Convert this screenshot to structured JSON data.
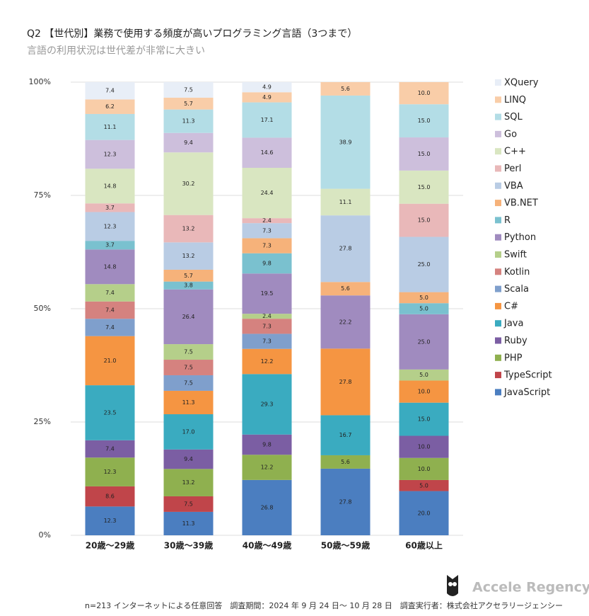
{
  "chart_data": {
    "type": "stacked_bar_100",
    "title": "Q2 【世代別】業務で使用する頻度が高いプログラミング言語（3つまで）",
    "subtitle": "言語の利用状況は世代差が非常に大きい",
    "footnote": "n=213 インターネットによる任意回答　調査期間：2024 年 9 月 24 日〜 10 月 28 日　調査実行者：株式会社アクセラリージェンシー",
    "brand": "Accele Regency",
    "categories": [
      "20歳〜29歳",
      "30歳〜39歳",
      "40歳〜49歳",
      "50歳〜59歳",
      "60歳以上"
    ],
    "ylim": [
      0,
      100
    ],
    "yticks": [
      {
        "value": 0,
        "label": "0%"
      },
      {
        "value": 25,
        "label": "25%"
      },
      {
        "value": 50,
        "label": "50%"
      },
      {
        "value": 75,
        "label": "75%"
      },
      {
        "value": 100,
        "label": "100%"
      }
    ],
    "grid": true,
    "legend": "right",
    "series": [
      {
        "name": "JavaScript",
        "color": "#4b7ec0",
        "values": [
          12.3,
          11.3,
          26.8,
          27.8,
          20.0
        ],
        "value_labels": [
          "12.3",
          "11.3",
          "26.8",
          "27.8",
          "20.0"
        ]
      },
      {
        "name": "TypeScript",
        "color": "#c0454a",
        "values": [
          8.6,
          7.5,
          0,
          0,
          5.0
        ],
        "value_labels": [
          "8.6",
          "7.5",
          null,
          null,
          "5.0"
        ]
      },
      {
        "name": "PHP",
        "color": "#8fb04f",
        "values": [
          12.3,
          13.2,
          12.2,
          5.6,
          10.0
        ],
        "value_labels": [
          "12.3",
          "13.2",
          "12.2",
          "5.6",
          "10.0"
        ]
      },
      {
        "name": "Ruby",
        "color": "#7b5ea3",
        "values": [
          7.4,
          9.4,
          9.8,
          0,
          10.0
        ],
        "value_labels": [
          "7.4",
          "9.4",
          "9.8",
          null,
          "10.0"
        ]
      },
      {
        "name": "Java",
        "color": "#3aabc0",
        "values": [
          23.5,
          17.0,
          29.3,
          16.7,
          15.0
        ],
        "value_labels": [
          "23.5",
          "17.0",
          "29.3",
          "16.7",
          "15.0"
        ]
      },
      {
        "name": "C#",
        "color": "#f59542",
        "values": [
          21.0,
          11.3,
          12.2,
          27.8,
          10.0
        ],
        "value_labels": [
          "21.0",
          "11.3",
          "12.2",
          "27.8",
          "10.0"
        ]
      },
      {
        "name": "Scala",
        "color": "#7f9fcc",
        "values": [
          7.4,
          7.5,
          7.3,
          0,
          0
        ],
        "value_labels": [
          "7.4",
          "7.5",
          "7.3",
          null,
          null
        ]
      },
      {
        "name": "Kotlin",
        "color": "#d5827f",
        "values": [
          7.4,
          7.5,
          7.3,
          0,
          0
        ],
        "value_labels": [
          "7.4",
          "7.5",
          "7.3",
          null,
          null
        ]
      },
      {
        "name": "Swift",
        "color": "#b5cf8a",
        "values": [
          7.4,
          7.5,
          2.4,
          0,
          5.0
        ],
        "value_labels": [
          "7.4",
          "7.5",
          "2.4",
          null,
          "5.0"
        ]
      },
      {
        "name": "Python",
        "color": "#a08bbf",
        "values": [
          14.8,
          26.4,
          19.5,
          22.2,
          25.0
        ],
        "value_labels": [
          "14.8",
          "26.4",
          "19.5",
          "22.2",
          "25.0"
        ]
      },
      {
        "name": "R",
        "color": "#7ac1cf",
        "values": [
          3.7,
          3.8,
          9.8,
          0,
          5.0
        ],
        "value_labels": [
          "3.7",
          "3.8",
          "9.8",
          null,
          "5.0"
        ]
      },
      {
        "name": "VB.NET",
        "color": "#f6b27a",
        "values": [
          0,
          5.7,
          7.3,
          5.6,
          5.0
        ],
        "value_labels": [
          null,
          "5.7",
          "7.3",
          "5.6",
          "5.0"
        ]
      },
      {
        "name": "VBA",
        "color": "#b9cce4",
        "values": [
          12.3,
          13.2,
          7.3,
          27.8,
          25.0
        ],
        "value_labels": [
          "12.3",
          "13.2",
          "7.3",
          "27.8",
          "25.0"
        ]
      },
      {
        "name": "Perl",
        "color": "#e9b8b9",
        "values": [
          3.7,
          13.2,
          2.4,
          0,
          15.0
        ],
        "value_labels": [
          "3.7",
          "13.2",
          "2.4",
          null,
          "15.0"
        ]
      },
      {
        "name": "C++",
        "color": "#d9e6c1",
        "values": [
          14.8,
          30.2,
          24.4,
          11.1,
          15.0
        ],
        "value_labels": [
          "14.8",
          "30.2",
          "24.4",
          "11.1",
          "15.0"
        ]
      },
      {
        "name": "Go",
        "color": "#cdbfdc",
        "values": [
          12.3,
          9.4,
          14.6,
          0,
          15.0
        ],
        "value_labels": [
          "12.3",
          "9.4",
          "14.6",
          null,
          "15.0"
        ]
      },
      {
        "name": "SQL",
        "color": "#b3dde6",
        "values": [
          11.1,
          11.3,
          17.1,
          38.9,
          15.0
        ],
        "value_labels": [
          "11.1",
          "11.3",
          "17.1",
          "38.9",
          "15.0"
        ]
      },
      {
        "name": "LINQ",
        "color": "#f9cda8",
        "values": [
          6.2,
          5.7,
          4.9,
          5.6,
          10.0
        ],
        "value_labels": [
          "6.2",
          "5.7",
          "4.9",
          "5.6",
          "10.0"
        ]
      },
      {
        "name": "XQuery",
        "color": "#e8eef7",
        "values": [
          7.4,
          7.5,
          4.9,
          0,
          0
        ],
        "value_labels": [
          "7.4",
          "7.5",
          "4.9",
          null,
          null
        ]
      }
    ]
  }
}
